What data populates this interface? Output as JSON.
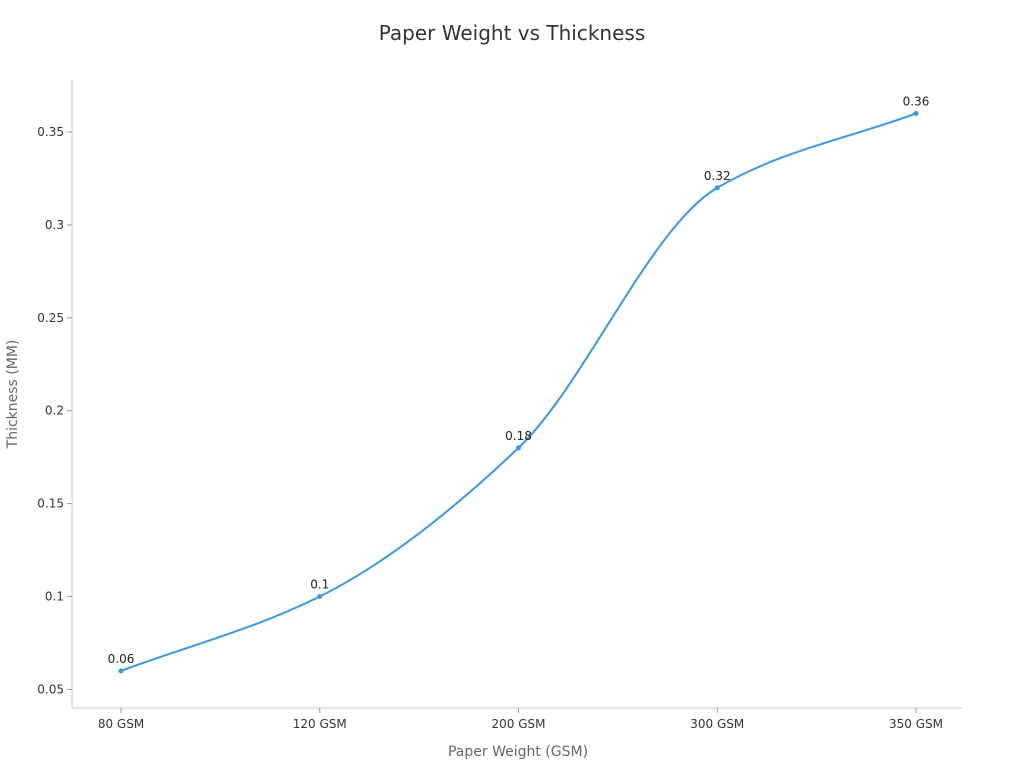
{
  "chart_data": {
    "type": "line",
    "title": "Paper Weight vs Thickness",
    "xlabel": "Paper Weight (GSM)",
    "ylabel": "Thickness (MM)",
    "categories": [
      "80 GSM",
      "120 GSM",
      "200 GSM",
      "300 GSM",
      "350 GSM"
    ],
    "series": [
      {
        "values": [
          0.06,
          0.1,
          0.18,
          0.32,
          0.36
        ],
        "color": "#3b97e3"
      }
    ],
    "data_labels": [
      "0.06",
      "0.1",
      "0.18",
      "0.32",
      "0.36"
    ],
    "y_ticks": [
      0.05,
      0.1,
      0.15,
      0.2,
      0.25,
      0.3,
      0.35
    ],
    "y_tick_labels": [
      "0.05",
      "0.1",
      "0.15",
      "0.2",
      "0.25",
      "0.3",
      "0.35"
    ],
    "ylim": [
      0.04,
      0.378
    ],
    "grid": false,
    "smooth": true,
    "legend": "none"
  }
}
